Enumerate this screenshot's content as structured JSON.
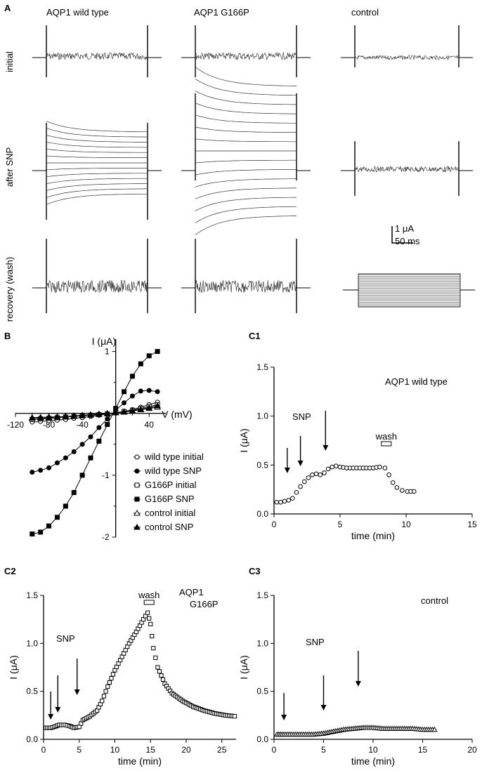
{
  "panel_A": {
    "letter": "A",
    "columns": [
      "AQP1 wild type",
      "AQP1 G166P",
      "control"
    ],
    "rows": [
      "initial",
      "after SNP",
      "recovery (wash)"
    ],
    "scale_current": "1 μA",
    "scale_time": "50 ms"
  },
  "colors": {
    "ink": "#000000",
    "trace": "#222222",
    "marker_fill": "#9a9a9a"
  },
  "chart_data": [
    {
      "id": "B",
      "type": "line",
      "letter": "B",
      "xlabel": "V (mV)",
      "ylabel": "I (μA)",
      "xlim": [
        -120,
        60
      ],
      "ylim": [
        -2,
        1.2
      ],
      "xticks": [
        -120,
        -80,
        -40,
        40
      ],
      "yticks": [
        -2,
        -1,
        1
      ],
      "x": [
        -100,
        -90,
        -80,
        -70,
        -60,
        -50,
        -40,
        -30,
        -20,
        -10,
        0,
        10,
        20,
        30,
        40,
        50
      ],
      "series": [
        {
          "name": "wild type initial",
          "marker": "circle-open",
          "values": [
            -0.14,
            -0.13,
            -0.12,
            -0.11,
            -0.1,
            -0.08,
            -0.07,
            -0.05,
            -0.03,
            -0.01,
            0.01,
            0.03,
            0.06,
            0.1,
            0.14,
            0.18
          ]
        },
        {
          "name": "wild type SNP",
          "marker": "circle-filled",
          "values": [
            -0.95,
            -0.92,
            -0.88,
            -0.8,
            -0.72,
            -0.62,
            -0.5,
            -0.38,
            -0.23,
            -0.09,
            0.05,
            0.17,
            0.28,
            0.36,
            0.37,
            0.35
          ]
        },
        {
          "name": "G166P initial",
          "marker": "square-open",
          "values": [
            -0.1,
            -0.09,
            -0.08,
            -0.07,
            -0.06,
            -0.05,
            -0.04,
            -0.03,
            -0.02,
            -0.01,
            0.01,
            0.03,
            0.05,
            0.08,
            0.11,
            0.14
          ]
        },
        {
          "name": "G166P SNP",
          "marker": "square-filled",
          "values": [
            -1.95,
            -1.92,
            -1.82,
            -1.68,
            -1.5,
            -1.28,
            -1.0,
            -0.72,
            -0.45,
            -0.18,
            0.08,
            0.35,
            0.6,
            0.8,
            0.93,
            1.0
          ]
        },
        {
          "name": "control initial",
          "marker": "triangle-open",
          "values": [
            -0.07,
            -0.065,
            -0.06,
            -0.055,
            -0.05,
            -0.04,
            -0.03,
            -0.02,
            -0.01,
            0.0,
            0.01,
            0.02,
            0.04,
            0.06,
            0.08,
            0.1
          ]
        },
        {
          "name": "control SNP",
          "marker": "triangle-filled",
          "values": [
            -0.08,
            -0.075,
            -0.07,
            -0.06,
            -0.05,
            -0.045,
            -0.035,
            -0.025,
            -0.015,
            -0.005,
            0.01,
            0.025,
            0.045,
            0.065,
            0.09,
            0.12
          ]
        }
      ]
    },
    {
      "id": "C1",
      "type": "scatter",
      "letter": "C1",
      "title": "AQP1 wild type",
      "xlabel": "time (min)",
      "ylabel": "I (μA)",
      "xlim": [
        0,
        15
      ],
      "ylim": [
        0,
        1.5
      ],
      "xticks": [
        0,
        5,
        10,
        15
      ],
      "yticks": [
        0.0,
        0.5,
        1.0,
        1.5
      ],
      "ytick_labels": [
        "0.0",
        "0.5",
        "1.0",
        "1.5"
      ],
      "annotation": "SNP",
      "wash_label": "wash",
      "arrows_at": [
        1.0,
        2.0,
        3.9
      ],
      "wash_at": 8.5,
      "points": [
        [
          0.2,
          0.12
        ],
        [
          0.5,
          0.12
        ],
        [
          0.8,
          0.13
        ],
        [
          1.1,
          0.14
        ],
        [
          1.4,
          0.16
        ],
        [
          1.7,
          0.22
        ],
        [
          2.0,
          0.28
        ],
        [
          2.3,
          0.33
        ],
        [
          2.6,
          0.37
        ],
        [
          2.9,
          0.4
        ],
        [
          3.2,
          0.41
        ],
        [
          3.5,
          0.4
        ],
        [
          3.8,
          0.42
        ],
        [
          4.1,
          0.46
        ],
        [
          4.4,
          0.48
        ],
        [
          4.7,
          0.49
        ],
        [
          5.0,
          0.48
        ],
        [
          5.5,
          0.47
        ],
        [
          6.0,
          0.47
        ],
        [
          6.5,
          0.47
        ],
        [
          7.0,
          0.47
        ],
        [
          7.5,
          0.47
        ],
        [
          8.0,
          0.48
        ],
        [
          8.4,
          0.47
        ],
        [
          8.7,
          0.4
        ],
        [
          9.0,
          0.32
        ],
        [
          9.3,
          0.27
        ],
        [
          9.7,
          0.24
        ],
        [
          10.1,
          0.23
        ],
        [
          10.6,
          0.23
        ]
      ]
    },
    {
      "id": "C2",
      "type": "scatter",
      "letter": "C2",
      "title": "AQP1 G166P",
      "xlabel": "time (min)",
      "ylabel": "I (μA)",
      "xlim": [
        0,
        27
      ],
      "ylim": [
        0,
        1.5
      ],
      "xticks": [
        0,
        5,
        10,
        15,
        20,
        25
      ],
      "yticks": [
        0.0,
        0.5,
        1.0,
        1.5
      ],
      "ytick_labels": [
        "0.0",
        "0.5",
        "1.0",
        "1.5"
      ],
      "annotation": "SNP",
      "wash_label": "wash",
      "arrows_at": [
        1.0,
        2.0,
        4.7
      ],
      "wash_at": 14.8,
      "points": [
        [
          0.3,
          0.12
        ],
        [
          1.0,
          0.12
        ],
        [
          1.5,
          0.13
        ],
        [
          2.2,
          0.15
        ],
        [
          3.0,
          0.15
        ],
        [
          3.6,
          0.14
        ],
        [
          4.3,
          0.12
        ],
        [
          5.0,
          0.13
        ],
        [
          5.5,
          0.2
        ],
        [
          6.5,
          0.24
        ],
        [
          7.5,
          0.3
        ],
        [
          8.2,
          0.4
        ],
        [
          9.0,
          0.55
        ],
        [
          10.0,
          0.72
        ],
        [
          11.0,
          0.86
        ],
        [
          12.0,
          1.0
        ],
        [
          13.0,
          1.12
        ],
        [
          14.0,
          1.25
        ],
        [
          14.6,
          1.32
        ],
        [
          15.0,
          1.2
        ],
        [
          15.4,
          0.95
        ],
        [
          16.0,
          0.75
        ],
        [
          17.0,
          0.58
        ],
        [
          18.0,
          0.48
        ],
        [
          19.5,
          0.4
        ],
        [
          21.0,
          0.34
        ],
        [
          22.5,
          0.3
        ],
        [
          24.0,
          0.27
        ],
        [
          25.5,
          0.25
        ],
        [
          26.8,
          0.24
        ]
      ]
    },
    {
      "id": "C3",
      "type": "scatter",
      "letter": "C3",
      "title": "control",
      "xlabel": "time (min)",
      "ylabel": "I (μA)",
      "xlim": [
        0,
        20
      ],
      "ylim": [
        0,
        1.5
      ],
      "xticks": [
        0,
        5,
        10,
        15,
        20
      ],
      "yticks": [
        0.0,
        0.5,
        1.0,
        1.5
      ],
      "ytick_labels": [
        "0.0",
        "0.5",
        "1.0",
        "1.5"
      ],
      "annotation": "SNP",
      "arrows_at": [
        1.0,
        5.0,
        8.5
      ],
      "points": [
        [
          0.3,
          0.05
        ],
        [
          1.0,
          0.05
        ],
        [
          2.0,
          0.05
        ],
        [
          3.0,
          0.05
        ],
        [
          4.0,
          0.05
        ],
        [
          5.0,
          0.06
        ],
        [
          6.0,
          0.08
        ],
        [
          7.0,
          0.1
        ],
        [
          8.0,
          0.11
        ],
        [
          9.0,
          0.12
        ],
        [
          10.0,
          0.12
        ],
        [
          11.0,
          0.11
        ],
        [
          12.0,
          0.11
        ],
        [
          13.0,
          0.11
        ],
        [
          14.0,
          0.11
        ],
        [
          15.0,
          0.1
        ],
        [
          16.2,
          0.1
        ]
      ]
    }
  ]
}
